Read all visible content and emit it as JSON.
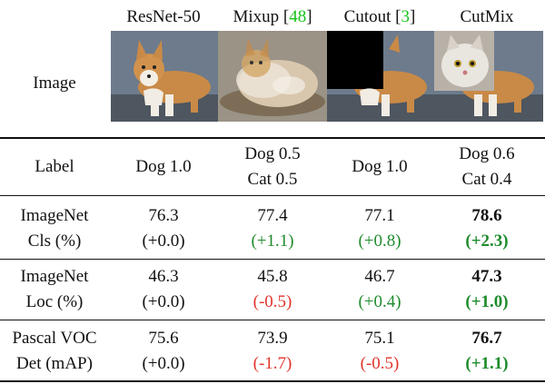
{
  "columns": {
    "resnet": {
      "label": "ResNet-50"
    },
    "mixup": {
      "label": "Mixup [",
      "ref": "48",
      "suffix": "]"
    },
    "cutout": {
      "label": "Cutout [",
      "ref": "3",
      "suffix": "]"
    },
    "cutmix": {
      "label": "CutMix"
    }
  },
  "rows": {
    "image": {
      "label": "Image"
    },
    "label": {
      "label": "Label",
      "resnet": "Dog 1.0",
      "mixup_line1": "Dog 0.5",
      "mixup_line2": "Cat 0.5",
      "cutout": "Dog 1.0",
      "cutmix_line1": "Dog 0.6",
      "cutmix_line2": "Cat 0.4"
    },
    "imagenet_cls": {
      "label_line1": "ImageNet",
      "label_line2": "Cls (%)",
      "resnet": {
        "value": "76.3",
        "delta": "(+0.0)"
      },
      "mixup": {
        "value": "77.4",
        "delta": "(+1.1)"
      },
      "cutout": {
        "value": "77.1",
        "delta": "(+0.8)"
      },
      "cutmix": {
        "value": "78.6",
        "delta": "(+2.3)"
      }
    },
    "imagenet_loc": {
      "label_line1": "ImageNet",
      "label_line2": "Loc (%)",
      "resnet": {
        "value": "46.3",
        "delta": "(+0.0)"
      },
      "mixup": {
        "value": "45.8",
        "delta": "(-0.5)"
      },
      "cutout": {
        "value": "46.7",
        "delta": "(+0.4)"
      },
      "cutmix": {
        "value": "47.3",
        "delta": "(+1.0)"
      }
    },
    "pascal_det": {
      "label_line1": "Pascal VOC",
      "label_line2": "Det (mAP)",
      "resnet": {
        "value": "75.6",
        "delta": "(+0.0)"
      },
      "mixup": {
        "value": "73.9",
        "delta": "(-1.7)"
      },
      "cutout": {
        "value": "75.1",
        "delta": "(-0.5)"
      },
      "cutmix": {
        "value": "76.7",
        "delta": "(+1.1)"
      }
    }
  },
  "colors": {
    "positive": "#1e8c2c",
    "negative": "#e2332c",
    "reference": "#16c316"
  }
}
